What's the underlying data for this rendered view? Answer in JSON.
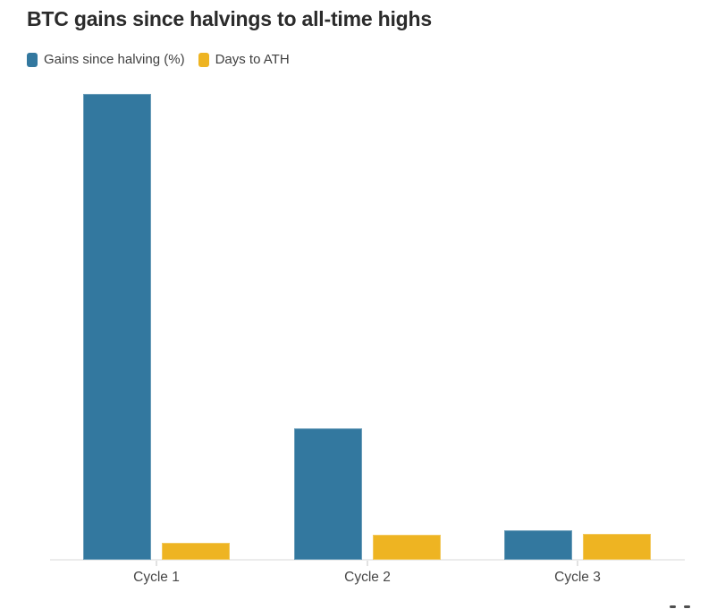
{
  "title": "BTC gains since halvings to all-time highs",
  "legend": {
    "items": [
      {
        "label": "Gains since halving (%)",
        "color": "#33789f"
      },
      {
        "label": "Days to ATH",
        "color": "#eeb422"
      }
    ]
  },
  "chart_data": {
    "type": "bar",
    "title": "BTC gains since halvings to all-time highs",
    "categories": [
      "Cycle 1",
      "Cycle 2",
      "Cycle 3"
    ],
    "series": [
      {
        "name": "Gains since halving (%)",
        "color": "#33789f",
        "values": [
          9900,
          2790,
          630
        ]
      },
      {
        "name": "Days to ATH",
        "color": "#eeb422",
        "values": [
          367,
          526,
          549
        ]
      }
    ],
    "xlabel": "",
    "ylabel": "",
    "ylim": [
      0,
      9900
    ],
    "grid": false,
    "y_axis_visible": false,
    "legend_position": "top-left"
  }
}
